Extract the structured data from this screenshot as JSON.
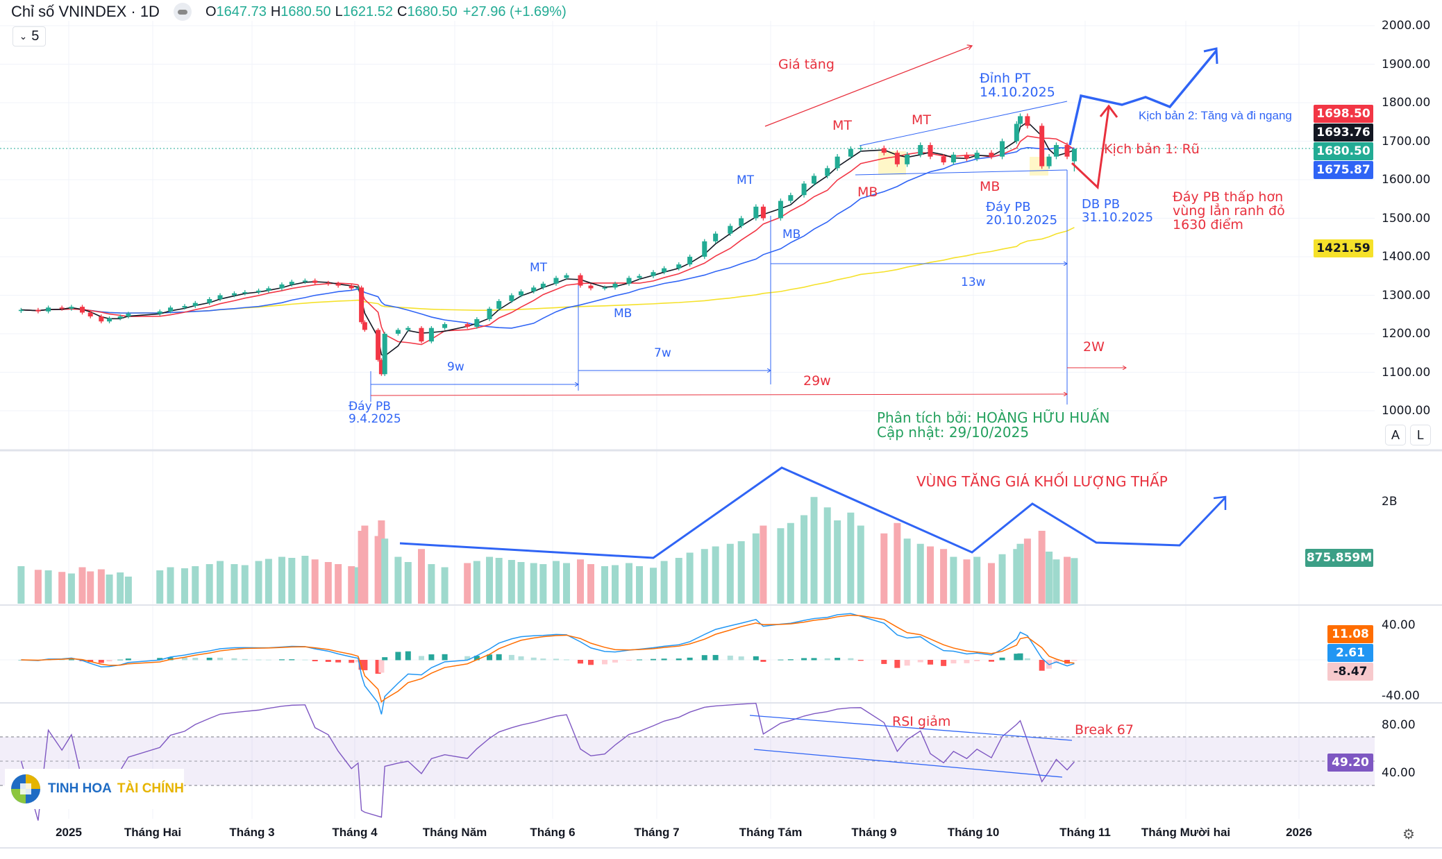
{
  "header": {
    "title": "Chỉ số VNINDEX · 1D",
    "open_label": "O",
    "open": "1647.73",
    "high_label": "H",
    "high": "1680.50",
    "low_label": "L",
    "low": "1621.52",
    "close_label": "C",
    "close": "1680.50",
    "change": "+27.96 (+1.69%)",
    "legend_toggle": "5"
  },
  "colors": {
    "up": "#22ab94",
    "down": "#f23645",
    "ma_black": "#131722",
    "ma_red": "#f23645",
    "ma_blue": "#2f64f5",
    "ma_yellow": "#f5e12a",
    "rsi": "#7e57c2",
    "macd": "#2196f3",
    "signal": "#ff6d00"
  },
  "price_axis": [
    "2000.00",
    "1900.00",
    "1800.00",
    "1700.00",
    "1600.00",
    "1500.00",
    "1400.00",
    "1300.00",
    "1200.00",
    "1100.00",
    "1000.00"
  ],
  "price_badges": [
    {
      "value": "1698.50",
      "color": "#f23645"
    },
    {
      "value": "1693.76",
      "color": "#131722"
    },
    {
      "value": "1680.50",
      "color": "#22ab94"
    },
    {
      "value": "1675.87",
      "color": "#2f64f5"
    },
    {
      "value": "1421.59",
      "color": "#f5e12a"
    }
  ],
  "volume_axis": {
    "label": "2B",
    "badge": "875.859M"
  },
  "macd_axis": {
    "top": "40.00",
    "bottom": "-40.00",
    "signal": "11.08",
    "macd": "2.61",
    "hist": "-8.47"
  },
  "rsi_axis": {
    "top": "80.00",
    "bottom": "40.00",
    "value": "49.20"
  },
  "scale_buttons": [
    "A",
    "L"
  ],
  "time_axis": [
    "2025",
    "Tháng Hai",
    "Tháng 3",
    "Tháng 4",
    "Tháng Năm",
    "Tháng 6",
    "Tháng 7",
    "Tháng Tám",
    "Tháng 9",
    "Tháng 10",
    "Tháng 11",
    "Tháng Mười hai",
    "2026"
  ],
  "annotations": {
    "gia_tang": "Giá tăng",
    "dinh_pt": "Đỉnh PT",
    "dinh_pt_date": "14.10.2025",
    "mt": "MT",
    "mb": "MB",
    "day_pb_1020": "Đáy PB",
    "day_pb_1020_date": "20.10.2025",
    "db_pb": "DB PB",
    "db_pb_date": "31.10.2025",
    "kb1": "Kịch bản 1: Rũ",
    "kb2": "Kịch bản 2: Tăng và đi ngang",
    "note1": "Đáy PB thấp hơn",
    "note2": "vùng lẳn ranh đỏ",
    "note3": "1630 điểm",
    "w9": "9w",
    "w7": "7w",
    "w13": "13w",
    "w29": "29w",
    "w2": "2W",
    "day_pb_0409": "Đáy PB",
    "day_pb_0409_date": "9.4.2025",
    "author": "Phân tích bởi: HOÀNG HỮU HUẤN",
    "updated": "Cập nhật: 29/10/2025",
    "volume_note": "VÙNG TĂNG GIÁ KHỐI LƯỢNG THẤP",
    "rsi_note": "RSI giảm",
    "break_note": "Break 67"
  },
  "logo": {
    "part1": "TINH HOA",
    "part2": "TÀI CHÍNH"
  },
  "chart_data": {
    "type": "candlestick",
    "symbol": "VNINDEX",
    "interval": "1D",
    "ylim": [
      1000,
      2000
    ],
    "last": {
      "open": 1647.73,
      "high": 1680.5,
      "low": 1621.52,
      "close": 1680.5
    },
    "series": [
      [
        "2024-12-18",
        1262,
        720
      ],
      [
        "2024-12-23",
        1258,
        650
      ],
      [
        "2024-12-26",
        1268,
        640
      ],
      [
        "2024-12-30",
        1265,
        610
      ],
      [
        "2025-01-02",
        1270,
        580
      ],
      [
        "2025-01-06",
        1255,
        700
      ],
      [
        "2025-01-09",
        1245,
        620
      ],
      [
        "2025-01-13",
        1232,
        660
      ],
      [
        "2025-01-16",
        1240,
        560
      ],
      [
        "2025-01-20",
        1245,
        600
      ],
      [
        "2025-01-23",
        1252,
        520
      ],
      [
        "2025-02-03",
        1258,
        640
      ],
      [
        "2025-02-06",
        1268,
        700
      ],
      [
        "2025-02-10",
        1272,
        680
      ],
      [
        "2025-02-13",
        1280,
        720
      ],
      [
        "2025-02-17",
        1290,
        760
      ],
      [
        "2025-02-20",
        1300,
        820
      ],
      [
        "2025-02-24",
        1305,
        760
      ],
      [
        "2025-02-27",
        1308,
        740
      ],
      [
        "2025-03-03",
        1312,
        820
      ],
      [
        "2025-03-06",
        1318,
        860
      ],
      [
        "2025-03-10",
        1328,
        900
      ],
      [
        "2025-03-13",
        1335,
        880
      ],
      [
        "2025-03-17",
        1338,
        920
      ],
      [
        "2025-03-20",
        1332,
        850
      ],
      [
        "2025-03-24",
        1330,
        800
      ],
      [
        "2025-03-27",
        1325,
        760
      ],
      [
        "2025-03-31",
        1318,
        720
      ],
      [
        "2025-04-02",
        1320,
        700
      ],
      [
        "2025-04-03",
        1230,
        1400
      ],
      [
        "2025-04-04",
        1210,
        1500
      ],
      [
        "2025-04-08",
        1132,
        1300
      ],
      [
        "2025-04-09",
        1095,
        1600
      ],
      [
        "2025-04-10",
        1200,
        1250
      ],
      [
        "2025-04-14",
        1210,
        900
      ],
      [
        "2025-04-17",
        1215,
        800
      ],
      [
        "2025-04-21",
        1180,
        1050
      ],
      [
        "2025-04-24",
        1215,
        760
      ],
      [
        "2025-04-28",
        1225,
        700
      ],
      [
        "2025-05-05",
        1218,
        780
      ],
      [
        "2025-05-08",
        1238,
        820
      ],
      [
        "2025-05-12",
        1265,
        900
      ],
      [
        "2025-05-15",
        1285,
        880
      ],
      [
        "2025-05-19",
        1300,
        840
      ],
      [
        "2025-05-22",
        1310,
        800
      ],
      [
        "2025-05-26",
        1320,
        780
      ],
      [
        "2025-05-29",
        1330,
        760
      ],
      [
        "2025-06-02",
        1345,
        820
      ],
      [
        "2025-06-05",
        1352,
        780
      ],
      [
        "2025-06-09",
        1325,
        850
      ],
      [
        "2025-06-12",
        1318,
        760
      ],
      [
        "2025-06-16",
        1320,
        720
      ],
      [
        "2025-06-19",
        1330,
        740
      ],
      [
        "2025-06-23",
        1345,
        780
      ],
      [
        "2025-06-26",
        1350,
        720
      ],
      [
        "2025-06-30",
        1360,
        690
      ],
      [
        "2025-07-03",
        1370,
        820
      ],
      [
        "2025-07-07",
        1380,
        880
      ],
      [
        "2025-07-10",
        1400,
        980
      ],
      [
        "2025-07-14",
        1440,
        1050
      ],
      [
        "2025-07-17",
        1460,
        1100
      ],
      [
        "2025-07-21",
        1480,
        1150
      ],
      [
        "2025-07-24",
        1500,
        1200
      ],
      [
        "2025-07-28",
        1530,
        1350
      ],
      [
        "2025-07-30",
        1500,
        1500
      ],
      [
        "2025-08-04",
        1545,
        1450
      ],
      [
        "2025-08-07",
        1560,
        1550
      ],
      [
        "2025-08-11",
        1590,
        1700
      ],
      [
        "2025-08-14",
        1610,
        2050
      ],
      [
        "2025-08-18",
        1630,
        1850
      ],
      [
        "2025-08-21",
        1660,
        1600
      ],
      [
        "2025-08-25",
        1680,
        1750
      ],
      [
        "2025-08-28",
        1682,
        1500
      ],
      [
        "2025-09-04",
        1670,
        1350
      ],
      [
        "2025-09-08",
        1640,
        1550
      ],
      [
        "2025-09-11",
        1665,
        1250
      ],
      [
        "2025-09-15",
        1690,
        1150
      ],
      [
        "2025-09-18",
        1660,
        1100
      ],
      [
        "2025-09-22",
        1645,
        1050
      ],
      [
        "2025-09-25",
        1665,
        900
      ],
      [
        "2025-09-29",
        1655,
        850
      ],
      [
        "2025-10-02",
        1670,
        900
      ],
      [
        "2025-10-06",
        1660,
        780
      ],
      [
        "2025-10-09",
        1700,
        950
      ],
      [
        "2025-10-13",
        1745,
        1050
      ],
      [
        "2025-10-14",
        1765,
        1150
      ],
      [
        "2025-10-16",
        1740,
        1250
      ],
      [
        "2025-10-20",
        1635,
        1400
      ],
      [
        "2025-10-22",
        1660,
        1000
      ],
      [
        "2025-10-24",
        1690,
        850
      ],
      [
        "2025-10-27",
        1660,
        900
      ],
      [
        "2025-10-29",
        1680.5,
        875.859
      ]
    ]
  }
}
